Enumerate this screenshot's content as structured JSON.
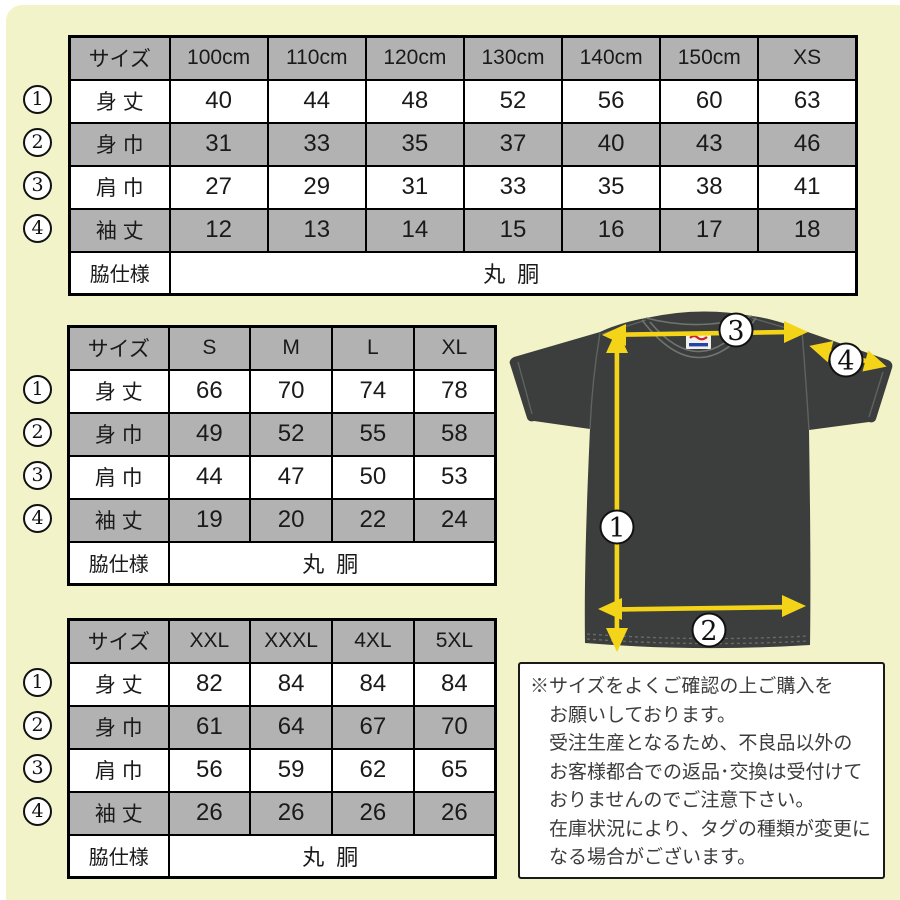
{
  "colors": {
    "background": "#f3f3c9",
    "table_header_gray": "#b2b2b2",
    "arrow_yellow": "#f4d419",
    "shirt_charcoal": "#3b3e3c"
  },
  "row_markers": [
    "1",
    "2",
    "3",
    "4"
  ],
  "tables": [
    {
      "id": "kids-to-xs",
      "header": [
        "サイズ",
        "100cm",
        "110cm",
        "120cm",
        "130cm",
        "140cm",
        "150cm",
        "XS"
      ],
      "rows": [
        {
          "marker": "1",
          "label": "身 丈",
          "values": [
            "40",
            "44",
            "48",
            "52",
            "56",
            "60",
            "63"
          ]
        },
        {
          "marker": "2",
          "label": "身 巾",
          "values": [
            "31",
            "33",
            "35",
            "37",
            "40",
            "43",
            "46"
          ]
        },
        {
          "marker": "3",
          "label": "肩 巾",
          "values": [
            "27",
            "29",
            "31",
            "33",
            "35",
            "38",
            "41"
          ]
        },
        {
          "marker": "4",
          "label": "袖 丈",
          "values": [
            "12",
            "13",
            "14",
            "15",
            "16",
            "17",
            "18"
          ]
        }
      ],
      "footer_label": "脇仕様",
      "footer_value": "丸 胴"
    },
    {
      "id": "s-to-xl",
      "header": [
        "サイズ",
        "S",
        "M",
        "L",
        "XL"
      ],
      "rows": [
        {
          "marker": "1",
          "label": "身 丈",
          "values": [
            "66",
            "70",
            "74",
            "78"
          ]
        },
        {
          "marker": "2",
          "label": "身 巾",
          "values": [
            "49",
            "52",
            "55",
            "58"
          ]
        },
        {
          "marker": "3",
          "label": "肩 巾",
          "values": [
            "44",
            "47",
            "50",
            "53"
          ]
        },
        {
          "marker": "4",
          "label": "袖 丈",
          "values": [
            "19",
            "20",
            "22",
            "24"
          ]
        }
      ],
      "footer_label": "脇仕様",
      "footer_value": "丸 胴"
    },
    {
      "id": "xxl-to-5xl",
      "header": [
        "サイズ",
        "XXL",
        "XXXL",
        "4XL",
        "5XL"
      ],
      "rows": [
        {
          "marker": "1",
          "label": "身 丈",
          "values": [
            "82",
            "84",
            "84",
            "84"
          ]
        },
        {
          "marker": "2",
          "label": "身 巾",
          "values": [
            "61",
            "64",
            "67",
            "70"
          ]
        },
        {
          "marker": "3",
          "label": "肩 巾",
          "values": [
            "56",
            "59",
            "62",
            "65"
          ]
        },
        {
          "marker": "4",
          "label": "袖 丈",
          "values": [
            "26",
            "26",
            "26",
            "26"
          ]
        }
      ],
      "footer_label": "脇仕様",
      "footer_value": "丸 胴"
    }
  ],
  "diagram": {
    "markers": [
      {
        "id": "1",
        "label": "1",
        "meaning": "身丈"
      },
      {
        "id": "2",
        "label": "2",
        "meaning": "身巾"
      },
      {
        "id": "3",
        "label": "3",
        "meaning": "肩巾"
      },
      {
        "id": "4",
        "label": "4",
        "meaning": "袖丈"
      }
    ]
  },
  "notice": {
    "lines": [
      "※サイズをよくご確認の上ご購入を",
      "お願いしております。",
      "受注生産となるため、不良品以外の",
      "お客様都合での返品･交換は受付けて",
      "おりませんのでご注意下さい。",
      "在庫状況により、タグの種類が変更に",
      "なる場合がございます。"
    ]
  },
  "chart_data": [
    {
      "type": "table",
      "title": "キッズ～XSサイズ表",
      "columns": [
        "サイズ",
        "100cm",
        "110cm",
        "120cm",
        "130cm",
        "140cm",
        "150cm",
        "XS"
      ],
      "rows": [
        [
          "身丈",
          40,
          44,
          48,
          52,
          56,
          60,
          63
        ],
        [
          "身巾",
          31,
          33,
          35,
          37,
          40,
          43,
          46
        ],
        [
          "肩巾",
          27,
          29,
          31,
          33,
          35,
          38,
          41
        ],
        [
          "袖丈",
          12,
          13,
          14,
          15,
          16,
          17,
          18
        ],
        [
          "脇仕様",
          "丸胴"
        ]
      ]
    },
    {
      "type": "table",
      "title": "S～XLサイズ表",
      "columns": [
        "サイズ",
        "S",
        "M",
        "L",
        "XL"
      ],
      "rows": [
        [
          "身丈",
          66,
          70,
          74,
          78
        ],
        [
          "身巾",
          49,
          52,
          55,
          58
        ],
        [
          "肩巾",
          44,
          47,
          50,
          53
        ],
        [
          "袖丈",
          19,
          20,
          22,
          24
        ],
        [
          "脇仕様",
          "丸胴"
        ]
      ]
    },
    {
      "type": "table",
      "title": "XXL～5XLサイズ表",
      "columns": [
        "サイズ",
        "XXL",
        "XXXL",
        "4XL",
        "5XL"
      ],
      "rows": [
        [
          "身丈",
          82,
          84,
          84,
          84
        ],
        [
          "身巾",
          61,
          64,
          67,
          70
        ],
        [
          "肩巾",
          56,
          59,
          62,
          65
        ],
        [
          "袖丈",
          26,
          26,
          26,
          26
        ],
        [
          "脇仕様",
          "丸胴"
        ]
      ]
    }
  ]
}
